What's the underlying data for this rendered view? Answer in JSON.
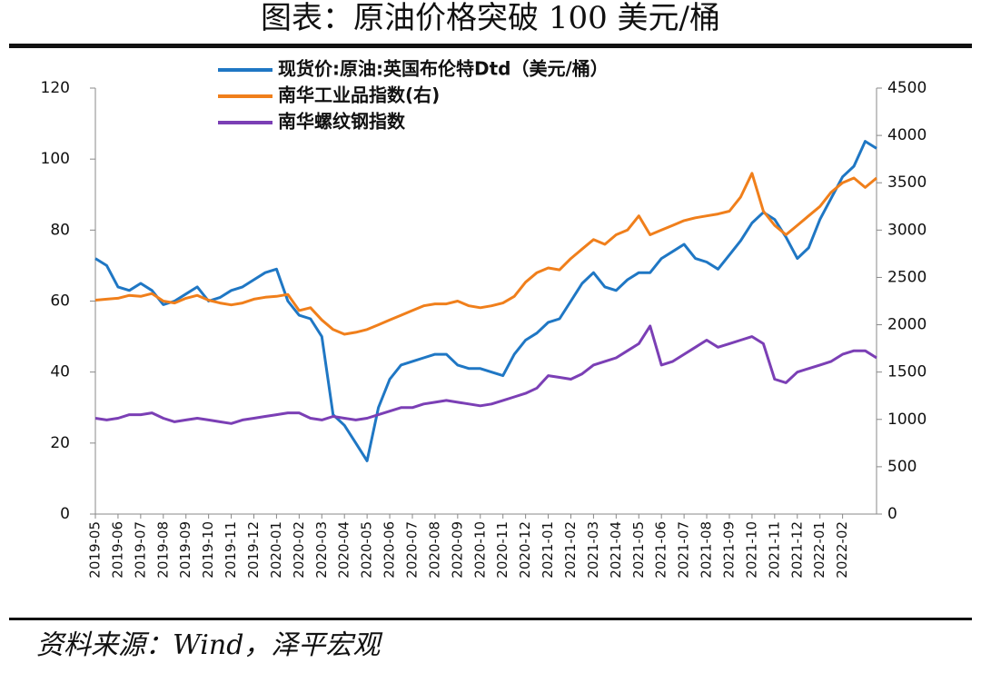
{
  "chart_data": {
    "type": "line",
    "title": "图表：原油价格突破 100 美元/桶",
    "source": "资料来源：Wind，泽平宏观",
    "categories": [
      "2019-05",
      null,
      "2019-06",
      null,
      "2019-07",
      null,
      "2019-08",
      null,
      "2019-09",
      null,
      "2019-10",
      null,
      "2019-11",
      null,
      "2019-12",
      null,
      "2020-01",
      null,
      "2020-02",
      null,
      "2020-03",
      null,
      "2020-04",
      null,
      "2020-05",
      null,
      "2020-06",
      null,
      "2020-07",
      null,
      "2020-08",
      null,
      "2020-09",
      null,
      "2020-10",
      null,
      "2020-11",
      null,
      "2020-12",
      null,
      "2021-01",
      null,
      "2021-02",
      null,
      "2021-03",
      null,
      "2021-04",
      null,
      "2021-05",
      null,
      "2021-06",
      null,
      "2021-07",
      null,
      "2021-08",
      null,
      "2021-09",
      null,
      "2021-10",
      null,
      "2021-11",
      null,
      "2021-12",
      null,
      "2022-01",
      null,
      "2022-02",
      null,
      null,
      null
    ],
    "series": [
      {
        "name": "现货价:原油:英国布伦特Dtd（美元/桶）",
        "color": "#1f77c4",
        "axis": "y",
        "values": [
          72,
          70,
          64,
          63,
          65,
          63,
          59,
          60,
          62,
          64,
          60,
          61,
          63,
          64,
          66,
          68,
          69,
          60,
          56,
          55,
          50,
          28,
          25,
          20,
          15,
          30,
          38,
          42,
          43,
          44,
          45,
          45,
          42,
          41,
          41,
          40,
          39,
          45,
          49,
          51,
          54,
          55,
          60,
          65,
          68,
          64,
          63,
          66,
          68,
          68,
          72,
          74,
          76,
          72,
          71,
          69,
          73,
          77,
          82,
          85,
          83,
          78,
          72,
          75,
          83,
          89,
          95,
          98,
          105,
          103
        ]
      },
      {
        "name": "南华工业品指数(右)",
        "color": "#f07f1b",
        "axis": "y2",
        "values": [
          2260,
          2270,
          2280,
          2310,
          2300,
          2330,
          2250,
          2230,
          2280,
          2310,
          2260,
          2230,
          2210,
          2230,
          2270,
          2290,
          2300,
          2320,
          2150,
          2180,
          2050,
          1950,
          1900,
          1920,
          1950,
          2000,
          2050,
          2100,
          2150,
          2200,
          2220,
          2220,
          2250,
          2200,
          2180,
          2200,
          2230,
          2300,
          2450,
          2550,
          2600,
          2580,
          2700,
          2800,
          2900,
          2850,
          2950,
          3000,
          3150,
          2950,
          3000,
          3050,
          3100,
          3130,
          3150,
          3170,
          3200,
          3350,
          3600,
          3200,
          3050,
          2950,
          3050,
          3150,
          3250,
          3400,
          3500,
          3550,
          3450,
          3550
        ]
      },
      {
        "name": "南华螺纹钢指数",
        "color": "#7b3fb5",
        "axis": "y",
        "values": [
          27,
          26.5,
          27,
          28,
          28,
          28.5,
          27,
          26,
          26.5,
          27,
          26.5,
          26,
          25.5,
          26.5,
          27,
          27.5,
          28,
          28.5,
          28.5,
          27,
          26.5,
          27.5,
          27,
          26.5,
          27,
          28,
          29,
          30,
          30,
          31,
          31.5,
          32,
          31.5,
          31,
          30.5,
          31,
          32,
          33,
          34,
          35.5,
          39,
          38.5,
          38,
          39.5,
          42,
          43,
          44,
          46,
          48,
          53,
          42,
          43,
          45,
          47,
          49,
          47,
          48,
          49,
          50,
          48,
          38,
          37,
          40,
          41,
          42,
          43,
          45,
          46,
          46,
          44
        ]
      }
    ],
    "ylim": [
      0,
      120
    ],
    "yticks": [
      0,
      20,
      40,
      60,
      80,
      100,
      120
    ],
    "y2lim": [
      0,
      4500
    ],
    "y2ticks": [
      0,
      500,
      1000,
      1500,
      2000,
      2500,
      3000,
      3500,
      4000,
      4500
    ]
  }
}
